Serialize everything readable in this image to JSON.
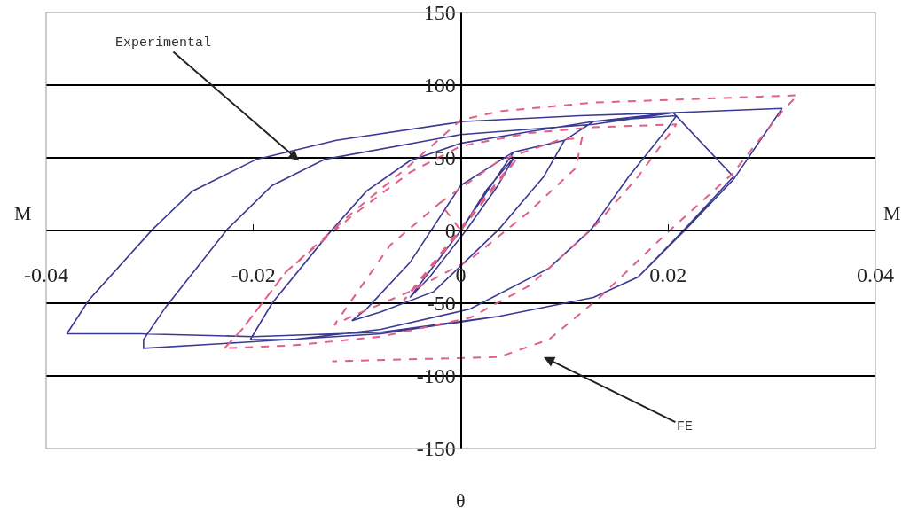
{
  "chart_data": {
    "type": "line",
    "xlabel": "θ",
    "ylabel": "M",
    "xlim": [
      -0.04,
      0.04
    ],
    "ylim": [
      -150,
      150
    ],
    "xticks": [
      -0.04,
      -0.02,
      0,
      0.02,
      0.04
    ],
    "yticks": [
      -150,
      -100,
      -50,
      0,
      50,
      100,
      150
    ],
    "grid": "y",
    "annotations": [
      "Experimental",
      "FE"
    ],
    "series": [
      {
        "color": "#3a3a92",
        "line_style": "solid",
        "x": [
          0,
          0.0025,
          0.0051,
          0.0035,
          0.0005,
          -0.003,
          -0.0049,
          -0.003,
          0,
          0.0051,
          0.01,
          0.008,
          0.0037,
          -0.0026,
          -0.0077,
          -0.0105,
          -0.0091,
          -0.0049,
          0,
          0.0051,
          0.01,
          0.0128,
          0.0208,
          0.0199,
          0.0162,
          0.0126,
          0.0085,
          0.0009,
          -0.0077,
          -0.0162,
          -0.0203,
          -0.0182,
          -0.0126,
          -0.0091,
          -0.0049,
          0,
          0.0066,
          0.0128,
          0.0205,
          0.0263,
          0.0216,
          0.0171,
          0.0128,
          0.0037,
          -0.0077,
          -0.0211,
          -0.0306,
          -0.0306,
          -0.0285,
          -0.0225,
          -0.0182,
          -0.0131,
          0,
          0.0128,
          0.0205,
          0.031,
          0.0263,
          0.0216,
          0.0171,
          0.0128,
          0.0037,
          -0.0077,
          -0.02,
          -0.031,
          -0.038,
          -0.0359,
          -0.0297,
          -0.0259,
          -0.0197,
          -0.012,
          0.0003,
          0.0115,
          0.0205,
          0.031
        ],
        "values": [
          0,
          28,
          50,
          30,
          0,
          -32,
          -46,
          -28,
          0,
          54,
          62,
          37,
          1,
          -42,
          -56,
          -62,
          -54,
          -22,
          31,
          54,
          62,
          75,
          79,
          70,
          37,
          1,
          -26,
          -54,
          -68,
          -75,
          -75,
          -50,
          -1,
          27,
          48,
          60,
          68,
          75,
          81,
          37,
          1,
          -32,
          -46,
          -59,
          -71,
          -77,
          -81,
          -75,
          -53,
          1,
          31,
          49,
          66,
          73,
          81,
          84,
          35,
          0,
          -32,
          -46,
          -59,
          -70,
          -73,
          -71,
          -71,
          -48,
          1,
          27,
          49,
          62,
          75,
          79,
          81,
          84
        ]
      },
      {
        "color": "#e0608a",
        "line_style": "dashed",
        "x": [
          0,
          0.0055,
          0.004,
          -0.0055,
          -0.004,
          0,
          -0.002,
          0.0037,
          0.0094,
          0.0117,
          0.0111,
          0.0066,
          0.0009,
          -0.0049,
          -0.0105,
          -0.0122,
          -0.0068,
          -0.002,
          null,
          -0.0228,
          -0.0211,
          -0.0168,
          -0.0105,
          -0.0049,
          0,
          0.0066,
          0.0128,
          0.0208,
          0.0171,
          0.0128,
          0.0085,
          0.0066,
          0.0009,
          -0.0077,
          -0.0162,
          -0.0228,
          -0.0211,
          -0.0168,
          -0.0105,
          -0.0049,
          0,
          0.0037,
          0.0128,
          0.0325,
          0.031,
          0.0262,
          0.02,
          0.0134,
          0.0085,
          0.0037,
          -0.0124
        ],
        "values": [
          0,
          50,
          38,
          -48,
          -36,
          0,
          19,
          48,
          62,
          64,
          43,
          13,
          -20,
          -42,
          -59,
          -65,
          -10,
          19,
          null,
          -81,
          -68,
          -28,
          10,
          40,
          58,
          67,
          71,
          73,
          37,
          2,
          -26,
          -38,
          -60,
          -73,
          -79,
          -81,
          -68,
          -28,
          12,
          45,
          76,
          82,
          88,
          93,
          82,
          39,
          -1,
          -46,
          -75,
          -87,
          -90
        ]
      }
    ]
  }
}
